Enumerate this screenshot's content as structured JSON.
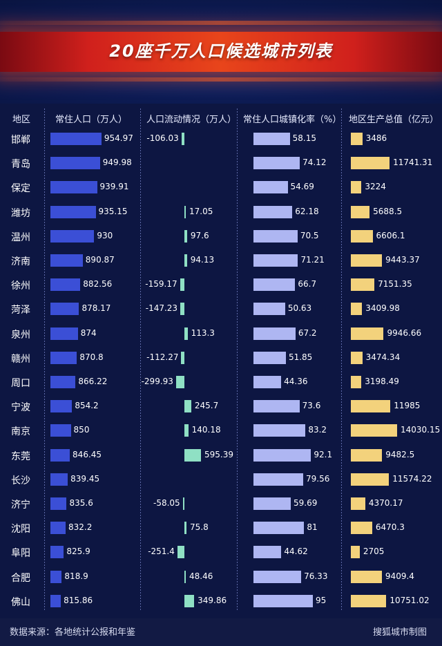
{
  "page": {
    "title": "20座千万人口候选城市列表",
    "source": "数据来源：各地统计公报和年鉴",
    "credit": "搜狐城市制图"
  },
  "colors": {
    "population": "#3b4fd6",
    "flow": "#8fe0c4",
    "urbanization": "#aeb6f2",
    "gdp": "#f3d27c",
    "background": "#0d1642",
    "title_band": "#e8451b"
  },
  "chart_data": {
    "type": "table",
    "columns": [
      "地区",
      "常住人口（万人）",
      "人口流动情况（万人）",
      "常住人口城镇化率（%）",
      "地区生产总值（亿元）"
    ],
    "rows": [
      {
        "city": "邯郸",
        "population": 954.97,
        "flow": -106.03,
        "urbanization": 58.15,
        "gdp": 3486
      },
      {
        "city": "青岛",
        "population": 949.98,
        "flow": null,
        "urbanization": 74.12,
        "gdp": 11741.31
      },
      {
        "city": "保定",
        "population": 939.91,
        "flow": null,
        "urbanization": 54.69,
        "gdp": 3224
      },
      {
        "city": "潍坊",
        "population": 935.15,
        "flow": 17.05,
        "urbanization": 62.18,
        "gdp": 5688.5
      },
      {
        "city": "温州",
        "population": 930,
        "flow": 97.6,
        "urbanization": 70.5,
        "gdp": 6606.1
      },
      {
        "city": "济南",
        "population": 890.87,
        "flow": 94.13,
        "urbanization": 71.21,
        "gdp": 9443.37
      },
      {
        "city": "徐州",
        "population": 882.56,
        "flow": -159.17,
        "urbanization": 66.7,
        "gdp": 7151.35
      },
      {
        "city": "菏泽",
        "population": 878.17,
        "flow": -147.23,
        "urbanization": 50.63,
        "gdp": 3409.98
      },
      {
        "city": "泉州",
        "population": 874,
        "flow": 113.3,
        "urbanization": 67.2,
        "gdp": 9946.66
      },
      {
        "city": "赣州",
        "population": 870.8,
        "flow": -112.27,
        "urbanization": 51.85,
        "gdp": 3474.34
      },
      {
        "city": "周口",
        "population": 866.22,
        "flow": -299.93,
        "urbanization": 44.36,
        "gdp": 3198.49
      },
      {
        "city": "宁波",
        "population": 854.2,
        "flow": 245.7,
        "urbanization": 73.6,
        "gdp": 11985
      },
      {
        "city": "南京",
        "population": 850,
        "flow": 140.18,
        "urbanization": 83.2,
        "gdp": 14030.15
      },
      {
        "city": "东莞",
        "population": 846.45,
        "flow": 595.39,
        "urbanization": 92.1,
        "gdp": 9482.5
      },
      {
        "city": "长沙",
        "population": 839.45,
        "flow": null,
        "urbanization": 79.56,
        "gdp": 11574.22
      },
      {
        "city": "济宁",
        "population": 835.6,
        "flow": -58.05,
        "urbanization": 59.69,
        "gdp": 4370.17
      },
      {
        "city": "沈阳",
        "population": 832.2,
        "flow": 75.8,
        "urbanization": 81,
        "gdp": 6470.3
      },
      {
        "city": "阜阳",
        "population": 825.9,
        "flow": -251.4,
        "urbanization": 44.62,
        "gdp": 2705
      },
      {
        "city": "合肥",
        "population": 818.9,
        "flow": 48.46,
        "urbanization": 76.33,
        "gdp": 9409.4
      },
      {
        "city": "佛山",
        "population": 815.86,
        "flow": 349.86,
        "urbanization": 95,
        "gdp": 10751.02
      }
    ]
  }
}
